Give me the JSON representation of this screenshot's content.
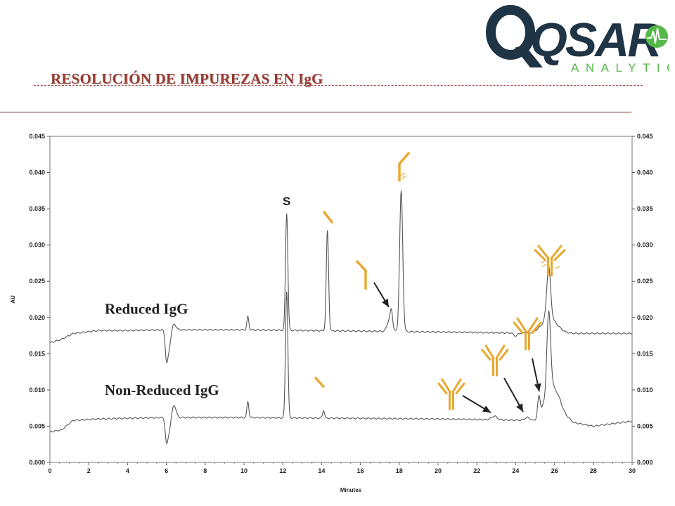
{
  "header": {
    "title": "RESOLUCIÓN DE IMPUREZAS EN IgG",
    "logo": {
      "main": "QSAR",
      "sub": "ANALYTICS",
      "color": "#1f3445",
      "accent": "#55b848"
    }
  },
  "colors": {
    "antibody_icon": "#e8a830",
    "trace": "#555555",
    "arrow": "#222222"
  },
  "chart_data": {
    "type": "line",
    "xlabel": "Minutes",
    "ylabel": "AU",
    "xlim": [
      0,
      30
    ],
    "ylim": [
      0,
      0.045
    ],
    "x_ticks": [
      "0",
      "2",
      "4",
      "6",
      "8",
      "10",
      "12",
      "14",
      "16",
      "18",
      "20",
      "22",
      "24",
      "26",
      "28",
      "30"
    ],
    "y_ticks": [
      "0.000",
      "0.005",
      "0.010",
      "0.015",
      "0.020",
      "0.025",
      "0.030",
      "0.035",
      "0.040",
      "0.045"
    ],
    "series": [
      {
        "name": "Reduced IgG",
        "baseline": [
          [
            0,
            0.0165
          ],
          [
            0.6,
            0.017
          ],
          [
            1.2,
            0.0178
          ],
          [
            2.5,
            0.0182
          ],
          [
            4,
            0.0182
          ],
          [
            5.8,
            0.0183
          ],
          [
            10,
            0.0183
          ],
          [
            20,
            0.018
          ],
          [
            26,
            0.0178
          ],
          [
            30,
            0.0178
          ]
        ],
        "peaks": [
          [
            6.0,
            -0.0025,
            0.06
          ],
          [
            6.1,
            -0.003,
            0.1
          ],
          [
            6.4,
            0.0008,
            0.1
          ],
          [
            10.2,
            0.0018,
            0.05
          ],
          [
            12.2,
            0.0162,
            0.06
          ],
          [
            14.3,
            0.0138,
            0.06
          ],
          [
            17.5,
            0.0016,
            0.12
          ],
          [
            17.6,
            0.0019,
            0.06
          ],
          [
            18.1,
            0.0194,
            0.08
          ],
          [
            24.0,
            -0.0004,
            0.1
          ],
          [
            25.7,
            0.0072,
            0.1
          ],
          [
            25.75,
            0.002,
            0.4
          ]
        ]
      },
      {
        "name": "Non-Reduced IgG",
        "baseline": [
          [
            0,
            0.0042
          ],
          [
            0.6,
            0.0045
          ],
          [
            1.2,
            0.0058
          ],
          [
            2.5,
            0.006
          ],
          [
            5.8,
            0.0062
          ],
          [
            10,
            0.0062
          ],
          [
            20,
            0.006
          ],
          [
            25.0,
            0.0058
          ],
          [
            25.7,
            0.0058
          ],
          [
            26.3,
            0.007
          ],
          [
            27.0,
            0.0055
          ],
          [
            28,
            0.005
          ],
          [
            30,
            0.0057
          ]
        ],
        "peaks": [
          [
            6.0,
            -0.0022,
            0.06
          ],
          [
            6.1,
            -0.0022,
            0.1
          ],
          [
            6.4,
            0.0017,
            0.1
          ],
          [
            10.2,
            0.0022,
            0.05
          ],
          [
            12.2,
            0.0175,
            0.06
          ],
          [
            14.1,
            0.0011,
            0.05
          ],
          [
            22.9,
            0.0005,
            0.15
          ],
          [
            24.6,
            0.0004,
            0.12
          ],
          [
            25.2,
            0.0031,
            0.07
          ],
          [
            25.4,
            0.001,
            0.08
          ],
          [
            25.7,
            0.0118,
            0.1
          ],
          [
            25.9,
            0.004,
            0.3
          ]
        ]
      }
    ],
    "annotations": [
      {
        "text": "S",
        "x": 12.2,
        "y": 0.0355
      }
    ]
  }
}
